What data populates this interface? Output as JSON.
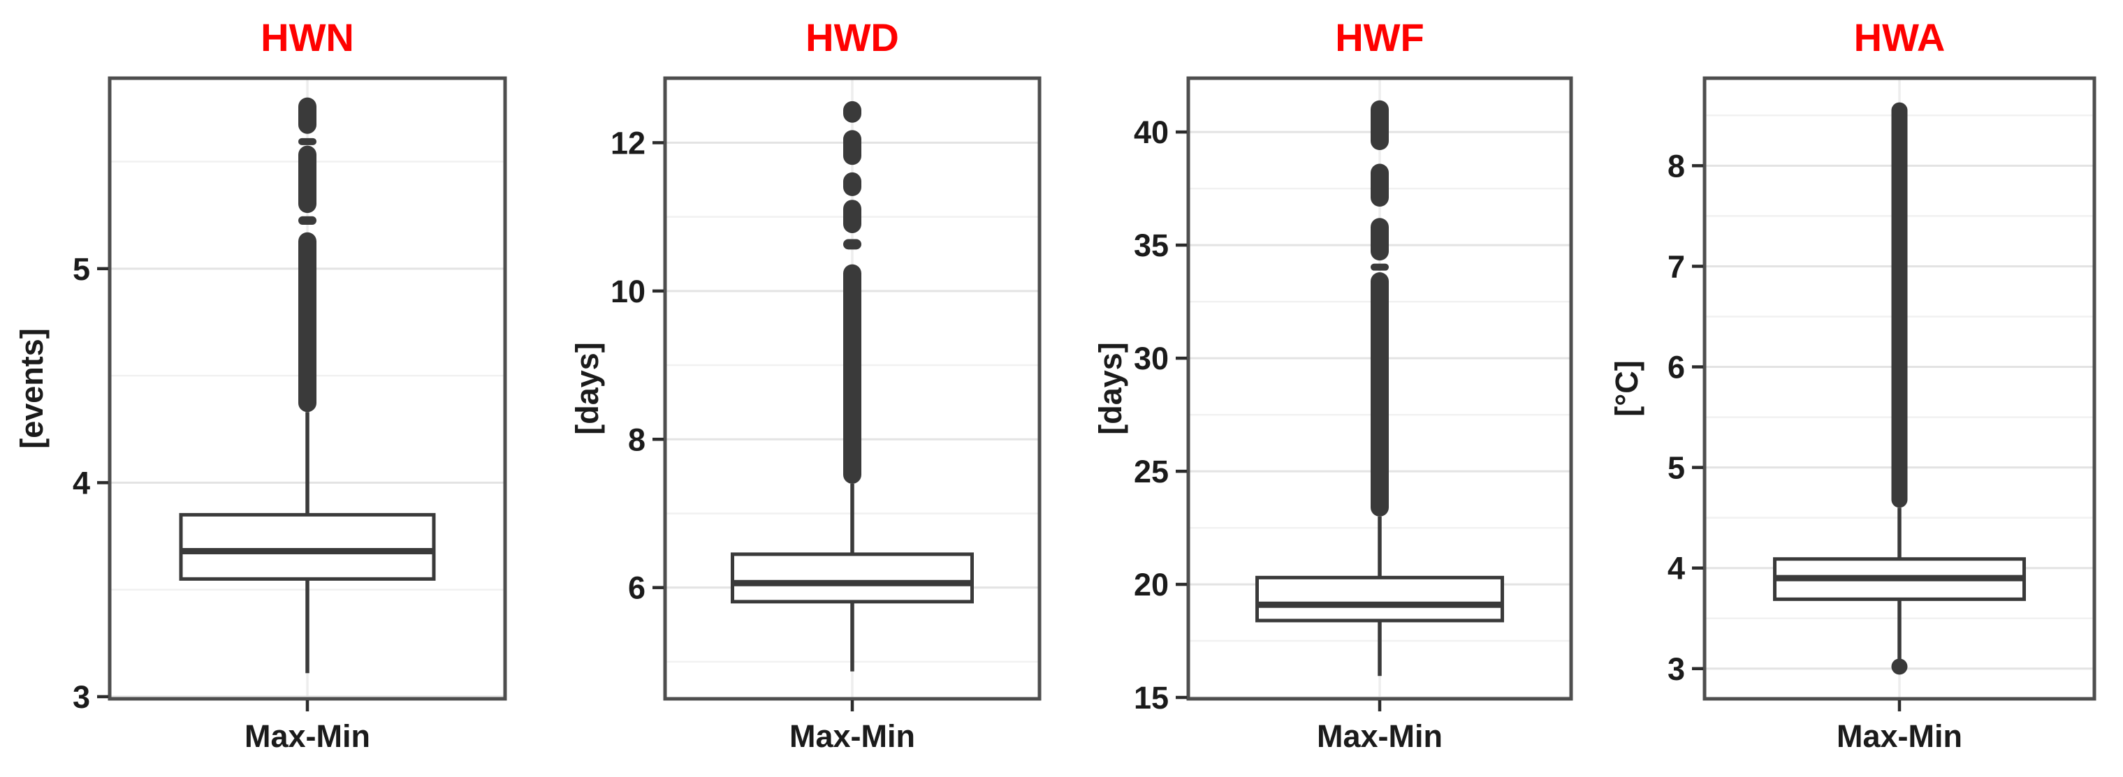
{
  "figure": {
    "background": "#ffffff",
    "title_color": "#fe0100",
    "text_color": "#1b1b1b",
    "line_color": "#3a3a3a",
    "border_color": "#4e4e4e",
    "grid_major_color": "#e3e3e3",
    "grid_minor_color": "#f1f1f1",
    "category_grid_color": "#ededed",
    "tick_color": "#2b2b2b"
  },
  "chart_data": [
    {
      "type": "boxplot",
      "title": "HWN",
      "ylabel": "[events]",
      "category": "Max-Min",
      "ylim": [
        2.99,
        5.89
      ],
      "yticks": [
        3,
        4,
        5
      ],
      "yticks_minor": [
        3.5,
        4.5,
        5.5
      ],
      "stats": {
        "whisker_low": 3.11,
        "q1": 3.55,
        "median": 3.68,
        "q3": 3.85,
        "whisker_high": 4.33
      },
      "outlier_segments": [
        [
          4.33,
          5.17
        ],
        [
          5.205,
          5.245
        ],
        [
          5.26,
          5.575
        ],
        [
          5.59,
          5.61
        ],
        [
          5.63,
          5.8
        ]
      ],
      "outlier_points": []
    },
    {
      "type": "boxplot",
      "title": "HWD",
      "ylabel": "[days]",
      "category": "Max-Min",
      "ylim": [
        4.5,
        12.87
      ],
      "yticks": [
        6,
        8,
        10,
        12
      ],
      "yticks_minor": [
        5,
        7,
        9,
        11
      ],
      "stats": {
        "whisker_low": 4.87,
        "q1": 5.81,
        "median": 6.06,
        "q3": 6.45,
        "whisker_high": 7.4
      },
      "outlier_segments": [
        [
          7.4,
          10.36
        ],
        [
          10.56,
          10.7
        ],
        [
          10.78,
          11.23
        ],
        [
          11.28,
          11.6
        ],
        [
          11.7,
          12.17
        ],
        [
          12.27,
          12.56
        ]
      ],
      "outlier_points": []
    },
    {
      "type": "boxplot",
      "title": "HWF",
      "ylabel": "[days]",
      "category": "Max-Min",
      "ylim": [
        14.94,
        42.38
      ],
      "yticks": [
        15,
        20,
        25,
        30,
        35,
        40
      ],
      "yticks_minor": [
        17.5,
        22.5,
        27.5,
        32.5,
        37.5
      ],
      "stats": {
        "whisker_low": 15.95,
        "q1": 18.4,
        "median": 19.1,
        "q3": 20.3,
        "whisker_high": 23.0
      },
      "outlier_segments": [
        [
          23.0,
          33.8
        ],
        [
          33.92,
          34.18
        ],
        [
          34.32,
          36.2
        ],
        [
          36.7,
          38.6
        ],
        [
          39.2,
          41.4
        ]
      ],
      "outlier_points": []
    },
    {
      "type": "boxplot",
      "title": "HWA",
      "ylabel": "[°C]",
      "category": "Max-Min",
      "ylim": [
        2.7,
        8.87
      ],
      "yticks": [
        3,
        4,
        5,
        6,
        7,
        8
      ],
      "yticks_minor": [
        3.5,
        4.5,
        5.5,
        6.5,
        7.5,
        8.5
      ],
      "stats": {
        "whisker_low": 3.07,
        "q1": 3.69,
        "median": 3.9,
        "q3": 4.09,
        "whisker_high": 4.6
      },
      "outlier_segments": [
        [
          4.6,
          8.63
        ]
      ],
      "outlier_points": [
        3.02
      ]
    }
  ]
}
